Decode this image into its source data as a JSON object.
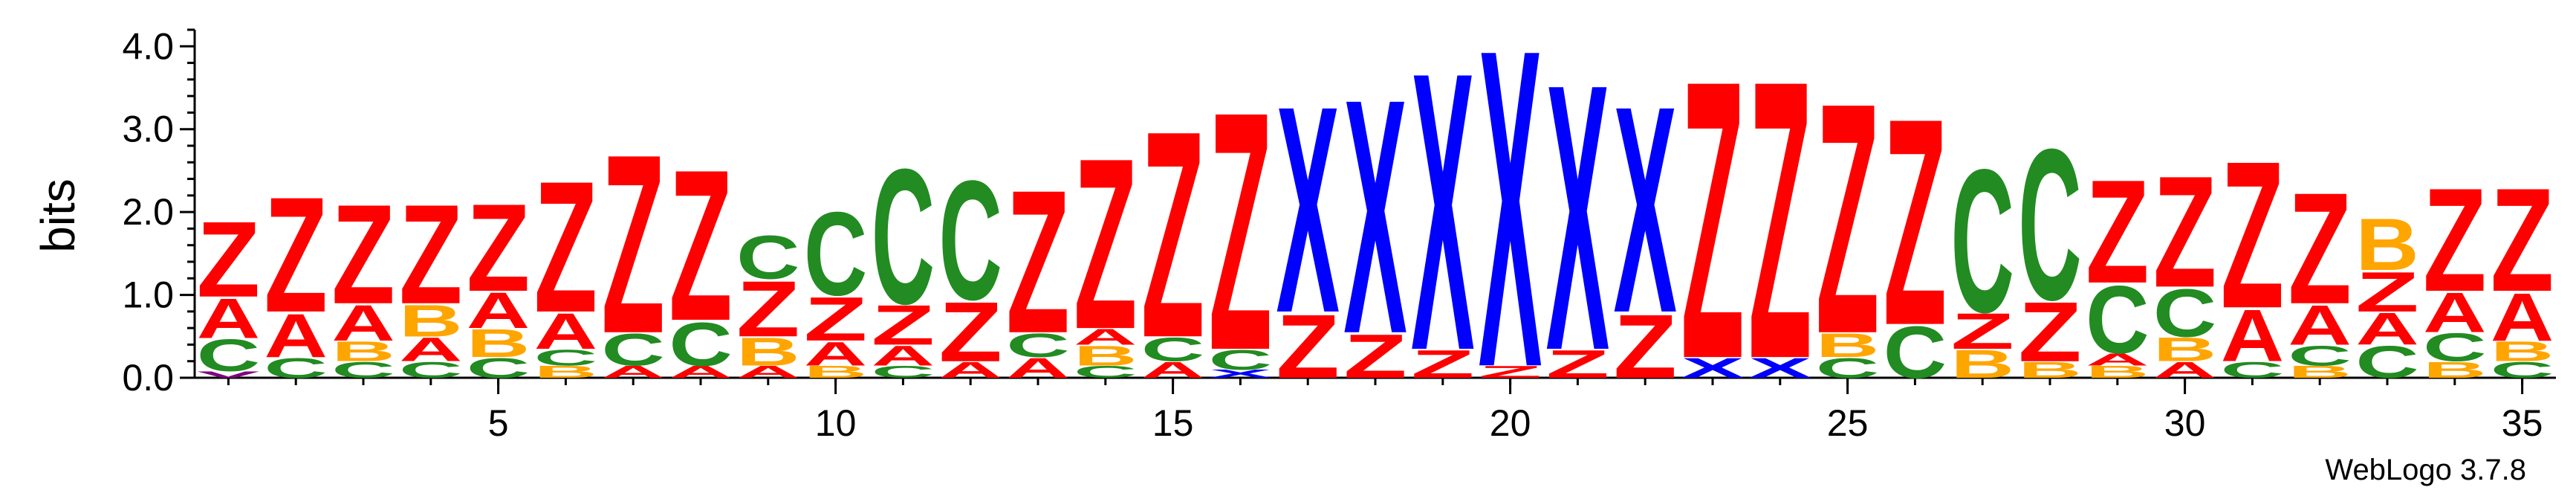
{
  "colors": {
    "Z": "#ff0000",
    "X": "#0000ff",
    "C": "#228b22",
    "A": "#ff0000",
    "B": "#ffa500",
    "V": "#800080"
  },
  "footer_text": "WebLogo 3.7.8",
  "chart_data": {
    "type": "sequence-logo",
    "ylabel": "bits",
    "ylim": [
      0,
      4.2
    ],
    "y_ticks": [
      {
        "value": 0,
        "label": "0.0"
      },
      {
        "value": 1,
        "label": "1.0"
      },
      {
        "value": 2,
        "label": "2.0"
      },
      {
        "value": 3,
        "label": "3.0"
      },
      {
        "value": 4,
        "label": "4.0"
      }
    ],
    "x_tick_labels": [
      {
        "position": 5,
        "label": "5"
      },
      {
        "position": 10,
        "label": "10"
      },
      {
        "position": 15,
        "label": "15"
      },
      {
        "position": 20,
        "label": "20"
      },
      {
        "position": 25,
        "label": "25"
      },
      {
        "position": 30,
        "label": "30"
      },
      {
        "position": 35,
        "label": "35"
      }
    ],
    "num_positions": 35,
    "positions": [
      {
        "position": 1,
        "stack": [
          [
            "V",
            0.08
          ],
          [
            "C",
            0.4
          ],
          [
            "A",
            0.5
          ],
          [
            "Z",
            0.95
          ]
        ]
      },
      {
        "position": 2,
        "stack": [
          [
            "C",
            0.25
          ],
          [
            "A",
            0.55
          ],
          [
            "Z",
            1.45
          ]
        ]
      },
      {
        "position": 3,
        "stack": [
          [
            "C",
            0.2
          ],
          [
            "B",
            0.25
          ],
          [
            "A",
            0.45
          ],
          [
            "Z",
            1.25
          ]
        ]
      },
      {
        "position": 4,
        "stack": [
          [
            "C",
            0.2
          ],
          [
            "A",
            0.3
          ],
          [
            "B",
            0.4
          ],
          [
            "Z",
            1.25
          ]
        ]
      },
      {
        "position": 5,
        "stack": [
          [
            "C",
            0.25
          ],
          [
            "B",
            0.35
          ],
          [
            "A",
            0.45
          ],
          [
            "Z",
            1.1
          ]
        ]
      },
      {
        "position": 6,
        "stack": [
          [
            "B",
            0.15
          ],
          [
            "C",
            0.2
          ],
          [
            "A",
            0.45
          ],
          [
            "Z",
            1.65
          ]
        ]
      },
      {
        "position": 7,
        "stack": [
          [
            "A",
            0.15
          ],
          [
            "C",
            0.4
          ],
          [
            "Z",
            2.25
          ]
        ]
      },
      {
        "position": 8,
        "stack": [
          [
            "A",
            0.15
          ],
          [
            "C",
            0.55
          ],
          [
            "Z",
            1.9
          ]
        ]
      },
      {
        "position": 9,
        "stack": [
          [
            "A",
            0.15
          ],
          [
            "B",
            0.35
          ],
          [
            "Z",
            0.7
          ],
          [
            "C",
            0.55
          ]
        ]
      },
      {
        "position": 10,
        "stack": [
          [
            "B",
            0.15
          ],
          [
            "A",
            0.3
          ],
          [
            "Z",
            0.55
          ],
          [
            "C",
            1.05
          ]
        ]
      },
      {
        "position": 11,
        "stack": [
          [
            "C",
            0.15
          ],
          [
            "A",
            0.25
          ],
          [
            "Z",
            0.5
          ],
          [
            "C",
            1.7
          ]
        ]
      },
      {
        "position": 12,
        "stack": [
          [
            "A",
            0.2
          ],
          [
            "Z",
            0.75
          ],
          [
            "C",
            1.5
          ]
        ]
      },
      {
        "position": 13,
        "stack": [
          [
            "A",
            0.25
          ],
          [
            "C",
            0.3
          ],
          [
            "Z",
            1.8
          ]
        ]
      },
      {
        "position": 14,
        "stack": [
          [
            "C",
            0.15
          ],
          [
            "B",
            0.25
          ],
          [
            "A",
            0.2
          ],
          [
            "Z",
            2.15
          ]
        ]
      },
      {
        "position": 15,
        "stack": [
          [
            "A",
            0.2
          ],
          [
            "C",
            0.3
          ],
          [
            "Z",
            2.6
          ]
        ]
      },
      {
        "position": 16,
        "stack": [
          [
            "X",
            0.1
          ],
          [
            "C",
            0.25
          ],
          [
            "Z",
            3.0
          ]
        ]
      },
      {
        "position": 17,
        "stack": [
          [
            "Z",
            0.8
          ],
          [
            "X",
            2.6
          ]
        ]
      },
      {
        "position": 18,
        "stack": [
          [
            "Z",
            0.55
          ],
          [
            "X",
            2.95
          ]
        ]
      },
      {
        "position": 19,
        "stack": [
          [
            "Z",
            0.35
          ],
          [
            "X",
            3.5
          ]
        ]
      },
      {
        "position": 20,
        "stack": [
          [
            "Z",
            0.15
          ],
          [
            "X",
            4.0
          ]
        ]
      },
      {
        "position": 21,
        "stack": [
          [
            "Z",
            0.35
          ],
          [
            "X",
            3.35
          ]
        ]
      },
      {
        "position": 22,
        "stack": [
          [
            "Z",
            0.8
          ],
          [
            "X",
            2.6
          ]
        ]
      },
      {
        "position": 23,
        "stack": [
          [
            "X",
            0.25
          ],
          [
            "Z",
            3.5
          ]
        ]
      },
      {
        "position": 24,
        "stack": [
          [
            "X",
            0.25
          ],
          [
            "Z",
            3.5
          ]
        ]
      },
      {
        "position": 25,
        "stack": [
          [
            "C",
            0.25
          ],
          [
            "B",
            0.3
          ],
          [
            "Z",
            2.9
          ]
        ]
      },
      {
        "position": 26,
        "stack": [
          [
            "C",
            0.65
          ],
          [
            "Z",
            2.6
          ]
        ]
      },
      {
        "position": 27,
        "stack": [
          [
            "B",
            0.35
          ],
          [
            "Z",
            0.45
          ],
          [
            "C",
            1.8
          ]
        ]
      },
      {
        "position": 28,
        "stack": [
          [
            "B",
            0.2
          ],
          [
            "Z",
            0.75
          ],
          [
            "C",
            1.9
          ]
        ]
      },
      {
        "position": 29,
        "stack": [
          [
            "B",
            0.15
          ],
          [
            "A",
            0.15
          ],
          [
            "C",
            0.85
          ],
          [
            "Z",
            1.3
          ]
        ]
      },
      {
        "position": 30,
        "stack": [
          [
            "A",
            0.2
          ],
          [
            "B",
            0.3
          ],
          [
            "C",
            0.6
          ],
          [
            "Z",
            1.4
          ]
        ]
      },
      {
        "position": 31,
        "stack": [
          [
            "C",
            0.2
          ],
          [
            "A",
            0.65
          ],
          [
            "Z",
            1.85
          ]
        ]
      },
      {
        "position": 32,
        "stack": [
          [
            "B",
            0.15
          ],
          [
            "C",
            0.25
          ],
          [
            "A",
            0.5
          ],
          [
            "Z",
            1.4
          ]
        ]
      },
      {
        "position": 33,
        "stack": [
          [
            "C",
            0.4
          ],
          [
            "A",
            0.4
          ],
          [
            "Z",
            0.5
          ],
          [
            "B",
            0.65
          ]
        ]
      },
      {
        "position": 34,
        "stack": [
          [
            "B",
            0.2
          ],
          [
            "C",
            0.35
          ],
          [
            "A",
            0.5
          ],
          [
            "Z",
            1.3
          ]
        ]
      },
      {
        "position": 35,
        "stack": [
          [
            "C",
            0.2
          ],
          [
            "B",
            0.25
          ],
          [
            "A",
            0.6
          ],
          [
            "Z",
            1.3
          ]
        ]
      }
    ]
  }
}
